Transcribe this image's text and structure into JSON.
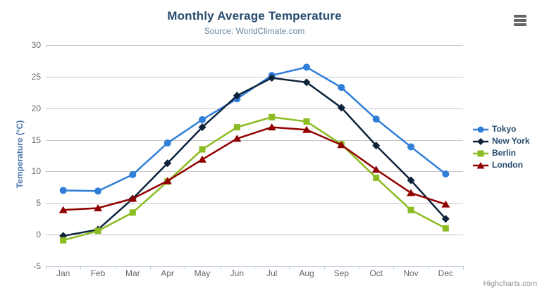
{
  "header": {
    "title": "Monthly Average Temperature",
    "subtitle": "Source: WorldClimate.com"
  },
  "credits": {
    "label": "Highcharts.com"
  },
  "colors": {
    "title": "#274b6d",
    "subtitle": "#6D869F",
    "y_axis_title": "#4572A7",
    "axis_labels": "#666666",
    "gridline": "#C8C8C8",
    "axis_line": "#C0D0E0",
    "legend_text": "#274b6d",
    "credits_text": "#909090",
    "menu_icon": "#666666",
    "background": "#ffffff"
  },
  "chart_data": {
    "type": "line",
    "title": "Monthly Average Temperature",
    "subtitle": "Source: WorldClimate.com",
    "xlabel": "",
    "ylabel": "Temperature (°C)",
    "categories": [
      "Jan",
      "Feb",
      "Mar",
      "Apr",
      "May",
      "Jun",
      "Jul",
      "Aug",
      "Sep",
      "Oct",
      "Nov",
      "Dec"
    ],
    "series": [
      {
        "name": "Tokyo",
        "color": "#2f7ed8",
        "marker": "circle",
        "values": [
          7.0,
          6.9,
          9.5,
          14.5,
          18.2,
          21.5,
          25.2,
          26.5,
          23.3,
          18.3,
          13.9,
          9.6
        ]
      },
      {
        "name": "New York",
        "color": "#0d233a",
        "marker": "diamond",
        "values": [
          -0.2,
          0.8,
          5.7,
          11.3,
          17.0,
          22.0,
          24.8,
          24.1,
          20.1,
          14.1,
          8.6,
          2.5
        ]
      },
      {
        "name": "Berlin",
        "color": "#8bbc21",
        "marker": "square",
        "values": [
          -0.9,
          0.6,
          3.5,
          8.4,
          13.5,
          17.0,
          18.6,
          17.9,
          14.3,
          9.0,
          3.9,
          1.0
        ]
      },
      {
        "name": "London",
        "color": "#910000",
        "marker": "triangle",
        "values": [
          3.9,
          4.2,
          5.7,
          8.5,
          11.9,
          15.2,
          17.0,
          16.6,
          14.2,
          10.3,
          6.6,
          4.8
        ]
      }
    ],
    "ylim": [
      -5,
      30
    ],
    "yticks": [
      -5,
      0,
      5,
      10,
      15,
      20,
      25,
      30
    ],
    "grid": true,
    "legend_position": "right"
  }
}
